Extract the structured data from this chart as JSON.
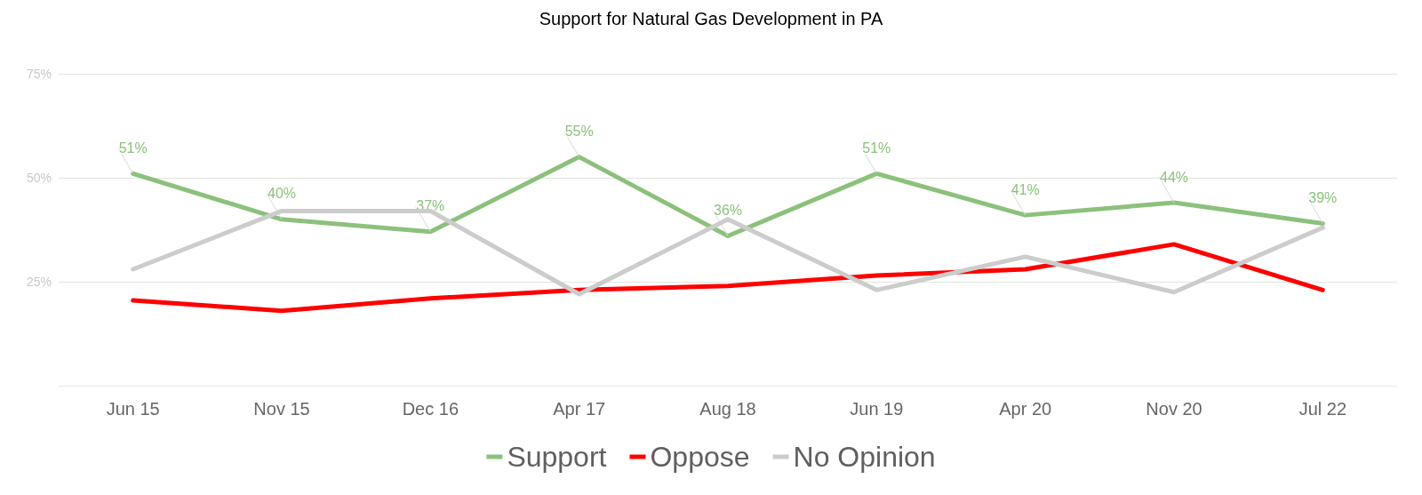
{
  "chart_data": {
    "type": "line",
    "title": "Support for Natural Gas Development in PA",
    "categories": [
      "Jun 15",
      "Nov 15",
      "Dec 16",
      "Apr 17",
      "Aug 18",
      "Jun 19",
      "Apr 20",
      "Nov 20",
      "Jul 22"
    ],
    "series": [
      {
        "name": "Support",
        "color": "#8cc17c",
        "values": [
          51,
          40,
          37,
          55,
          36,
          51,
          41,
          44,
          39
        ],
        "value_labels": [
          "51%",
          "40%",
          "37%",
          "55%",
          "36%",
          "51%",
          "41%",
          "44%",
          "39%"
        ]
      },
      {
        "name": "Oppose",
        "color": "#ff0000",
        "values": [
          20.5,
          18,
          21,
          23,
          24,
          26.5,
          28,
          34,
          23
        ]
      },
      {
        "name": "No Opinion",
        "color": "#cccccc",
        "values": [
          28,
          42,
          42,
          22,
          40,
          23,
          31,
          22.5,
          38
        ]
      }
    ],
    "ylim": [
      0,
      75
    ],
    "yticks": [
      {
        "value": 25,
        "label": "25%"
      },
      {
        "value": 50,
        "label": "50%"
      },
      {
        "value": 75,
        "label": "75%"
      }
    ],
    "grid": "y",
    "legend": "bottom",
    "marker": "none",
    "line_style": "solid"
  }
}
